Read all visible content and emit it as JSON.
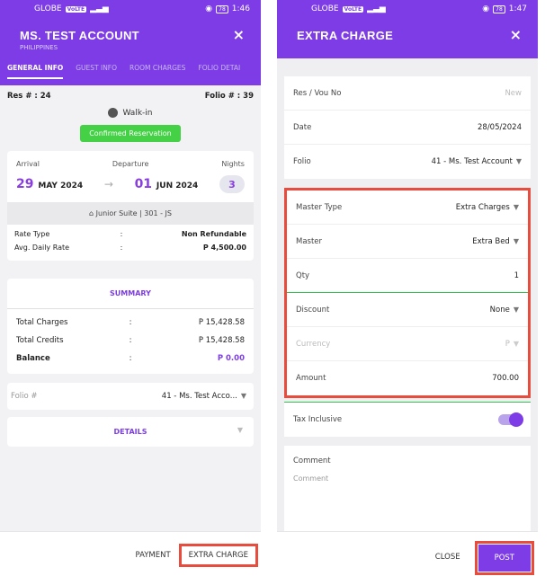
{
  "left": {
    "status": {
      "carrier": "GLOBE",
      "time": "1:46",
      "battery": "78"
    },
    "header": {
      "title": "MS. TEST ACCOUNT",
      "subtitle": "PHILIPPINES",
      "close": "×"
    },
    "tabs": [
      "GENERAL INFO",
      "GUEST INFO",
      "ROOM CHARGES",
      "FOLIO DETAI"
    ],
    "res_no": "Res # : 24",
    "folio_no": "Folio # : 39",
    "source": "Walk-in",
    "status_badge": "Confirmed Reservation",
    "stay": {
      "arrival_label": "Arrival",
      "departure_label": "Departure",
      "nights_label": "Nights",
      "arrival_day": "29",
      "arrival_month": "MAY 2024",
      "departure_day": "01",
      "departure_month": "JUN 2024",
      "nights": "3",
      "room": "Junior Suite  |  301 - JS"
    },
    "rate": [
      {
        "label": "Rate Type",
        "colon": ":",
        "value": "Non Refundable"
      },
      {
        "label": "Avg. Daily Rate",
        "colon": ":",
        "value": "P 4,500.00"
      }
    ],
    "summary": {
      "title": "SUMMARY",
      "rows": [
        {
          "label": "Total Charges",
          "colon": ":",
          "value": "P 15,428.58"
        },
        {
          "label": "Total Credits",
          "colon": ":",
          "value": "P 15,428.58"
        },
        {
          "label": "Balance",
          "colon": ":",
          "value": "P 0.00"
        }
      ]
    },
    "folio_select": {
      "label": "Folio #",
      "value": "41 - Ms. Test Acco..."
    },
    "details": "DETAILS",
    "bottom": {
      "payment": "PAYMENT",
      "extra_charge": "EXTRA CHARGE"
    }
  },
  "right": {
    "status": {
      "carrier": "GLOBE",
      "time": "1:47",
      "battery": "78"
    },
    "header": {
      "title": "EXTRA CHARGE",
      "close": "×"
    },
    "fields1": [
      {
        "label": "Res / Vou No",
        "value": "New"
      },
      {
        "label": "Date",
        "value": "28/05/2024"
      },
      {
        "label": "Folio",
        "value": "41 - Ms. Test Account"
      }
    ],
    "fields2": [
      {
        "label": "Master Type",
        "value": "Extra Charges"
      },
      {
        "label": "Master",
        "value": "Extra Bed"
      },
      {
        "label": "Qty",
        "value": "1"
      },
      {
        "label": "Discount",
        "value": "None"
      },
      {
        "label": "Currency",
        "value": "P"
      },
      {
        "label": "Amount",
        "value": "700.00"
      }
    ],
    "tax_inclusive": "Tax Inclusive",
    "comment": {
      "label": "Comment",
      "placeholder": "Comment"
    },
    "bottom": {
      "close": "CLOSE",
      "post": "POST"
    }
  },
  "colors": {
    "accent": "#7d3ce6",
    "highlight": "#e94b3c",
    "success": "#44d146"
  }
}
